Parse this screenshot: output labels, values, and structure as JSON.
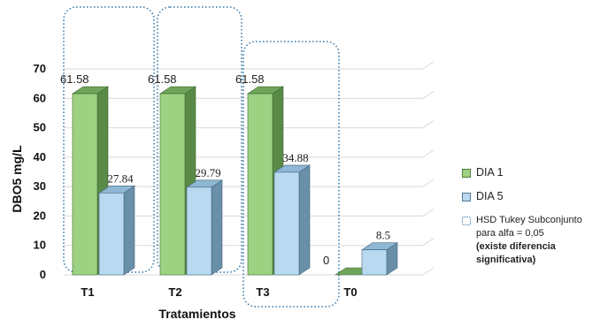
{
  "chart_data": {
    "type": "bar",
    "title": "",
    "xlabel": "Tratamientos",
    "ylabel": "DBO5 mg/L",
    "ylim": [
      0,
      70
    ],
    "yticks": [
      0,
      10,
      20,
      30,
      40,
      50,
      60,
      70
    ],
    "categories": [
      "T1",
      "T2",
      "T3",
      "T0"
    ],
    "series": [
      {
        "name": "DIA 1",
        "values": [
          61.58,
          61.58,
          61.58,
          0
        ],
        "color": "#9ed283",
        "labels": [
          "61.58",
          "61.58",
          "61.58",
          "0"
        ]
      },
      {
        "name": "DIA 5",
        "values": [
          27.84,
          29.79,
          34.88,
          8.5
        ],
        "color": "#b9d9f0",
        "labels": [
          "27.84",
          "29.79",
          "34.88",
          "8.5"
        ]
      }
    ],
    "grid": true,
    "legend_position": "right",
    "groups_highlighted": [
      [
        "T1"
      ],
      [
        "T2"
      ],
      [
        "T3"
      ]
    ],
    "legend_note": {
      "label": "HSD Tukey Subconjunto para alfa = 0,05",
      "emphasis": "(existe diferencia significativa)"
    }
  }
}
